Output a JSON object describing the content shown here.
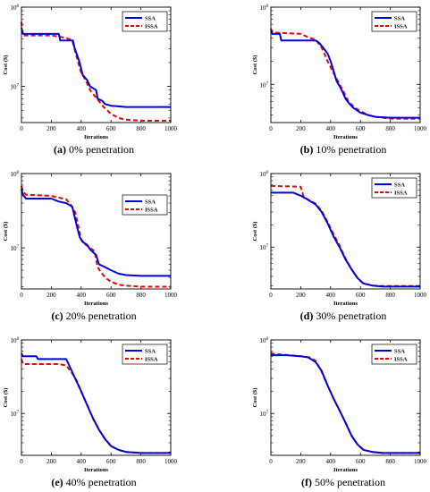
{
  "figure": {
    "panels": [
      {
        "label": "(a)",
        "caption": "0% penetration"
      },
      {
        "label": "(b)",
        "caption": "10% penetration"
      },
      {
        "label": "(c)",
        "caption": "20% penetration"
      },
      {
        "label": "(d)",
        "caption": "30% penetration"
      },
      {
        "label": "(e)",
        "caption": "40% penetration"
      },
      {
        "label": "(f)",
        "caption": "50% penetration"
      }
    ],
    "colors": {
      "ssa": "#0000dd",
      "issa": "#ee0000"
    }
  },
  "chart_data": [
    {
      "type": "line",
      "xlabel": "Iterations",
      "ylabel": "Cost ($)",
      "yscale": "log",
      "xlim": [
        0,
        1000
      ],
      "xticks": [
        0,
        200,
        400,
        600,
        800,
        1000
      ],
      "ylim": [
        3500000.0,
        100000000.0
      ],
      "yticks": [
        {
          "v": 10000000.0,
          "l": "10^7"
        },
        {
          "v": 100000000.0,
          "l": "10^8"
        }
      ],
      "legend": "top-right",
      "series": [
        {
          "name": "SSA",
          "x": [
            0,
            5,
            10,
            250,
            260,
            345,
            355,
            390,
            410,
            440,
            460,
            500,
            510,
            540,
            560,
            600,
            650,
            700,
            800,
            1000
          ],
          "y": [
            55000000.0,
            50000000.0,
            46000000.0,
            46000000.0,
            38000000.0,
            38000000.0,
            31000000.0,
            20000000.0,
            14000000.0,
            12000000.0,
            10000000.0,
            9000000.0,
            7000000.0,
            6600000.0,
            6000000.0,
            5700000.0,
            5600000.0,
            5500000.0,
            5500000.0,
            5500000.0
          ]
        },
        {
          "name": "ISSA",
          "x": [
            0,
            5,
            10,
            200,
            300,
            340,
            380,
            400,
            430,
            460,
            480,
            520,
            550,
            600,
            650,
            700,
            800,
            1000
          ],
          "y": [
            65000000.0,
            50000000.0,
            44000000.0,
            44000000.0,
            41000000.0,
            38000000.0,
            20000000.0,
            15000000.0,
            12000000.0,
            9000000.0,
            8000000.0,
            6500000.0,
            5500000.0,
            4500000.0,
            4000000.0,
            3800000.0,
            3700000.0,
            3700000.0
          ]
        }
      ]
    },
    {
      "type": "line",
      "xlabel": "Iterations",
      "ylabel": "Cost ($)",
      "yscale": "log",
      "xlim": [
        0,
        1000
      ],
      "xticks": [
        0,
        200,
        400,
        600,
        800,
        1000
      ],
      "ylim": [
        3200000.0,
        100000000.0
      ],
      "yticks": [
        {
          "v": 10000000.0,
          "l": "10^7"
        },
        {
          "v": 100000000.0,
          "l": "10^8"
        }
      ],
      "legend": "top-right",
      "series": [
        {
          "name": "SSA",
          "x": [
            0,
            10,
            60,
            70,
            300,
            320,
            350,
            380,
            400,
            420,
            440,
            460,
            480,
            500,
            520,
            550,
            600,
            650,
            700,
            800,
            1000
          ],
          "y": [
            50000000.0,
            45000000.0,
            45000000.0,
            37000000.0,
            37000000.0,
            35000000.0,
            30000000.0,
            25000000.0,
            20000000.0,
            15000000.0,
            11000000.0,
            9500000.0,
            8000000.0,
            6500000.0,
            5800000.0,
            5000000.0,
            4300000.0,
            4000000.0,
            3800000.0,
            3700000.0,
            3700000.0
          ]
        },
        {
          "name": "ISSA",
          "x": [
            0,
            10,
            200,
            260,
            300,
            340,
            380,
            420,
            450,
            480,
            520,
            560,
            600,
            650,
            700,
            800,
            1000
          ],
          "y": [
            53000000.0,
            47000000.0,
            45000000.0,
            40000000.0,
            38000000.0,
            30000000.0,
            20000000.0,
            14000000.0,
            11000000.0,
            8500000.0,
            6000000.0,
            5000000.0,
            4500000.0,
            4000000.0,
            3800000.0,
            3600000.0,
            3600000.0
          ]
        }
      ]
    },
    {
      "type": "line",
      "xlabel": "Iterations",
      "ylabel": "Cost ($)",
      "yscale": "log",
      "xlim": [
        0,
        1000
      ],
      "xticks": [
        0,
        200,
        400,
        600,
        800,
        1000
      ],
      "ylim": [
        2800000.0,
        100000000.0
      ],
      "yticks": [
        {
          "v": 10000000.0,
          "l": "10^7"
        },
        {
          "v": 100000000.0,
          "l": "10^8"
        }
      ],
      "legend": "center-right",
      "series": [
        {
          "name": "SSA",
          "x": [
            0,
            10,
            30,
            100,
            200,
            250,
            300,
            340,
            370,
            390,
            410,
            440,
            460,
            500,
            520,
            560,
            600,
            650,
            700,
            800,
            1000
          ],
          "y": [
            62000000.0,
            52000000.0,
            46000000.0,
            46000000.0,
            46000000.0,
            42000000.0,
            40000000.0,
            36000000.0,
            20000000.0,
            14000000.0,
            12000000.0,
            11000000.0,
            9500000.0,
            8000000.0,
            6000000.0,
            5500000.0,
            5000000.0,
            4500000.0,
            4300000.0,
            4200000.0,
            4200000.0
          ]
        },
        {
          "name": "ISSA",
          "x": [
            0,
            10,
            30,
            200,
            300,
            330,
            360,
            380,
            400,
            430,
            460,
            490,
            510,
            530,
            560,
            600,
            650,
            700,
            800,
            1000
          ],
          "y": [
            68000000.0,
            58000000.0,
            52000000.0,
            50000000.0,
            45000000.0,
            38000000.0,
            30000000.0,
            20000000.0,
            13000000.0,
            11000000.0,
            10000000.0,
            9000000.0,
            5500000.0,
            4800000.0,
            4000000.0,
            3500000.0,
            3200000.0,
            3100000.0,
            3000000.0,
            3000000.0
          ]
        }
      ]
    },
    {
      "type": "line",
      "xlabel": "Iterations",
      "ylabel": "Cost ($)",
      "yscale": "log",
      "xlim": [
        0,
        1000
      ],
      "xticks": [
        0,
        200,
        400,
        600,
        800,
        1000
      ],
      "ylim": [
        2700000.0,
        100000000.0
      ],
      "yticks": [
        {
          "v": 10000000.0,
          "l": "10^7"
        },
        {
          "v": 100000000.0,
          "l": "10^8"
        }
      ],
      "legend": "top-right",
      "series": [
        {
          "name": "SSA",
          "x": [
            0,
            150,
            200,
            240,
            300,
            340,
            380,
            420,
            460,
            500,
            540,
            580,
            620,
            680,
            750,
            850,
            1000
          ],
          "y": [
            55000000.0,
            55000000.0,
            50000000.0,
            45000000.0,
            38000000.0,
            30000000.0,
            21000000.0,
            14000000.0,
            10000000.0,
            6800000.0,
            5000000.0,
            3800000.0,
            3200000.0,
            3000000.0,
            2900000.0,
            2900000.0,
            2900000.0
          ]
        },
        {
          "name": "ISSA",
          "x": [
            0,
            200,
            220,
            260,
            300,
            340,
            380,
            420,
            460,
            500,
            540,
            580,
            620,
            680,
            750,
            850,
            1000
          ],
          "y": [
            68000000.0,
            66000000.0,
            48000000.0,
            43000000.0,
            39000000.0,
            31000000.0,
            22000000.0,
            15000000.0,
            10500000.0,
            7000000.0,
            5000000.0,
            3800000.0,
            3200000.0,
            3000000.0,
            2950000.0,
            2950000.0,
            2950000.0
          ]
        }
      ]
    },
    {
      "type": "line",
      "xlabel": "Iterations",
      "ylabel": "Cost ($)",
      "yscale": "log",
      "xlim": [
        0,
        1000
      ],
      "xticks": [
        0,
        200,
        400,
        600,
        800,
        1000
      ],
      "ylim": [
        2700000.0,
        100000000.0
      ],
      "yticks": [
        {
          "v": 10000000.0,
          "l": "10^7"
        },
        {
          "v": 100000000.0,
          "l": "10^8"
        }
      ],
      "legend": "top-right",
      "series": [
        {
          "name": "SSA",
          "x": [
            0,
            10,
            100,
            110,
            300,
            320,
            360,
            400,
            440,
            480,
            520,
            560,
            600,
            650,
            700,
            800,
            1000
          ],
          "y": [
            66000000.0,
            60000000.0,
            60000000.0,
            55000000.0,
            55000000.0,
            45000000.0,
            30000000.0,
            20000000.0,
            13000000.0,
            8500000.0,
            6000000.0,
            4500000.0,
            3600000.0,
            3200000.0,
            3000000.0,
            2900000.0,
            2900000.0
          ]
        },
        {
          "name": "ISSA",
          "x": [
            0,
            10,
            250,
            300,
            340,
            370,
            400,
            440,
            480,
            520,
            560,
            600,
            650,
            700,
            800,
            1000
          ],
          "y": [
            55000000.0,
            47000000.0,
            47000000.0,
            45000000.0,
            35000000.0,
            28000000.0,
            20000000.0,
            13000000.0,
            8500000.0,
            6000000.0,
            4500000.0,
            3600000.0,
            3200000.0,
            3000000.0,
            2900000.0,
            2900000.0
          ]
        }
      ]
    },
    {
      "type": "line",
      "xlabel": "Iterations",
      "ylabel": "Cost ($)",
      "yscale": "log",
      "xlim": [
        0,
        1000
      ],
      "xticks": [
        0,
        200,
        400,
        600,
        800,
        1000
      ],
      "ylim": [
        2700000.0,
        100000000.0
      ],
      "yticks": [
        {
          "v": 10000000.0,
          "l": "10^7"
        },
        {
          "v": 100000000.0,
          "l": "10^8"
        }
      ],
      "legend": "top-right",
      "series": [
        {
          "name": "SSA",
          "x": [
            0,
            100,
            200,
            250,
            300,
            340,
            380,
            420,
            460,
            500,
            540,
            580,
            620,
            680,
            750,
            850,
            1000
          ],
          "y": [
            62000000.0,
            62000000.0,
            60000000.0,
            58000000.0,
            50000000.0,
            38000000.0,
            24000000.0,
            16000000.0,
            11000000.0,
            7500000.0,
            5000000.0,
            3800000.0,
            3200000.0,
            3000000.0,
            2900000.0,
            2900000.0,
            2900000.0
          ]
        },
        {
          "name": "ISSA",
          "x": [
            0,
            10,
            200,
            260,
            300,
            340,
            380,
            420,
            460,
            500,
            540,
            580,
            620,
            680,
            750,
            850,
            1000
          ],
          "y": [
            68000000.0,
            65000000.0,
            60000000.0,
            58000000.0,
            52000000.0,
            37000000.0,
            24000000.0,
            16000000.0,
            11000000.0,
            7500000.0,
            5000000.0,
            3800000.0,
            3200000.0,
            3000000.0,
            2900000.0,
            2900000.0,
            2900000.0
          ]
        }
      ]
    }
  ]
}
